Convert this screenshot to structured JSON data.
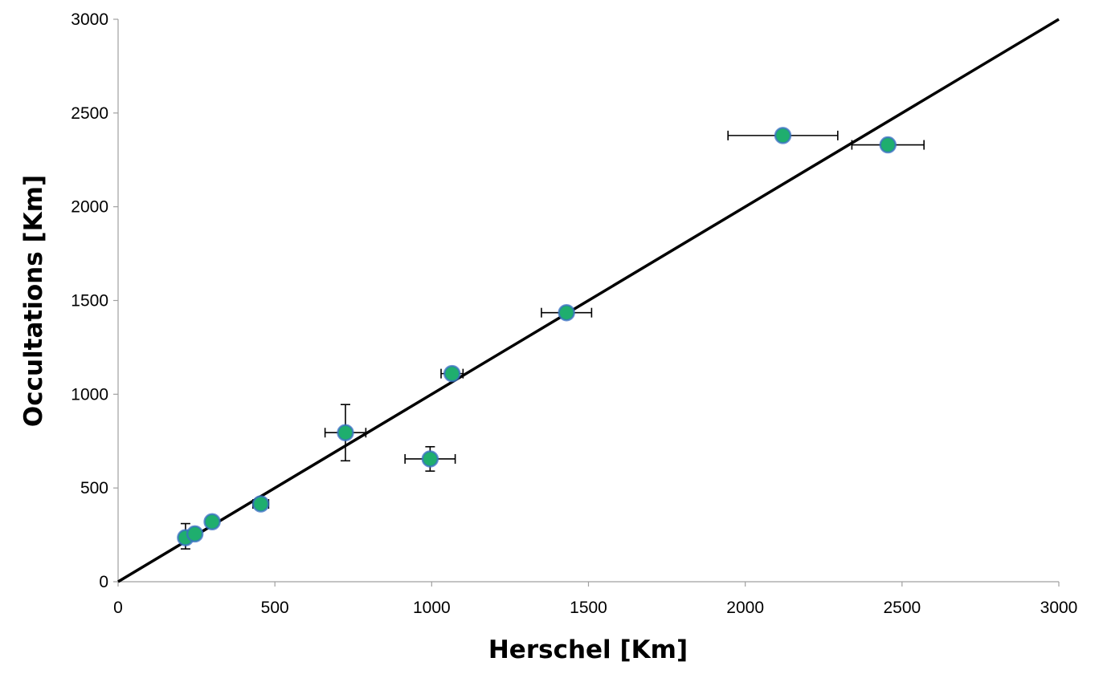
{
  "chart_data": {
    "type": "scatter",
    "title": "",
    "xlabel": "Herschel [Km]",
    "ylabel": "Occultations [Km]",
    "xlim": [
      0,
      3000
    ],
    "ylim": [
      0,
      3000
    ],
    "x_ticks": [
      0,
      500,
      1000,
      1500,
      2000,
      2500,
      3000
    ],
    "y_ticks": [
      0,
      500,
      1000,
      1500,
      2000,
      2500,
      3000
    ],
    "grid": false,
    "legend": "none",
    "marker_color": "#1fae6e",
    "marker_edge_color": "#3a6fc4",
    "line_color": "#000000",
    "reference_line": {
      "x": [
        0,
        3000
      ],
      "y": [
        0,
        3000
      ]
    },
    "points": [
      {
        "x": 215,
        "y": 235,
        "xerr": 0,
        "yerr_low": 60,
        "yerr_high": 75
      },
      {
        "x": 245,
        "y": 255,
        "xerr": 0,
        "yerr_low": 0,
        "yerr_high": 0
      },
      {
        "x": 300,
        "y": 320,
        "xerr": 0,
        "yerr_low": 0,
        "yerr_high": 0
      },
      {
        "x": 455,
        "y": 415,
        "xerr": 25,
        "yerr_low": 0,
        "yerr_high": 0
      },
      {
        "x": 725,
        "y": 795,
        "xerr": 65,
        "yerr_low": 150,
        "yerr_high": 150
      },
      {
        "x": 995,
        "y": 655,
        "xerr": 80,
        "yerr_low": 65,
        "yerr_high": 65
      },
      {
        "x": 1065,
        "y": 1110,
        "xerr": 35,
        "yerr_low": 0,
        "yerr_high": 0
      },
      {
        "x": 1430,
        "y": 1435,
        "xerr": 80,
        "yerr_low": 0,
        "yerr_high": 0
      },
      {
        "x": 2120,
        "y": 2380,
        "xerr": 175,
        "yerr_low": 0,
        "yerr_high": 0
      },
      {
        "x": 2455,
        "y": 2330,
        "xerr": 115,
        "yerr_low": 0,
        "yerr_high": 0
      }
    ]
  }
}
